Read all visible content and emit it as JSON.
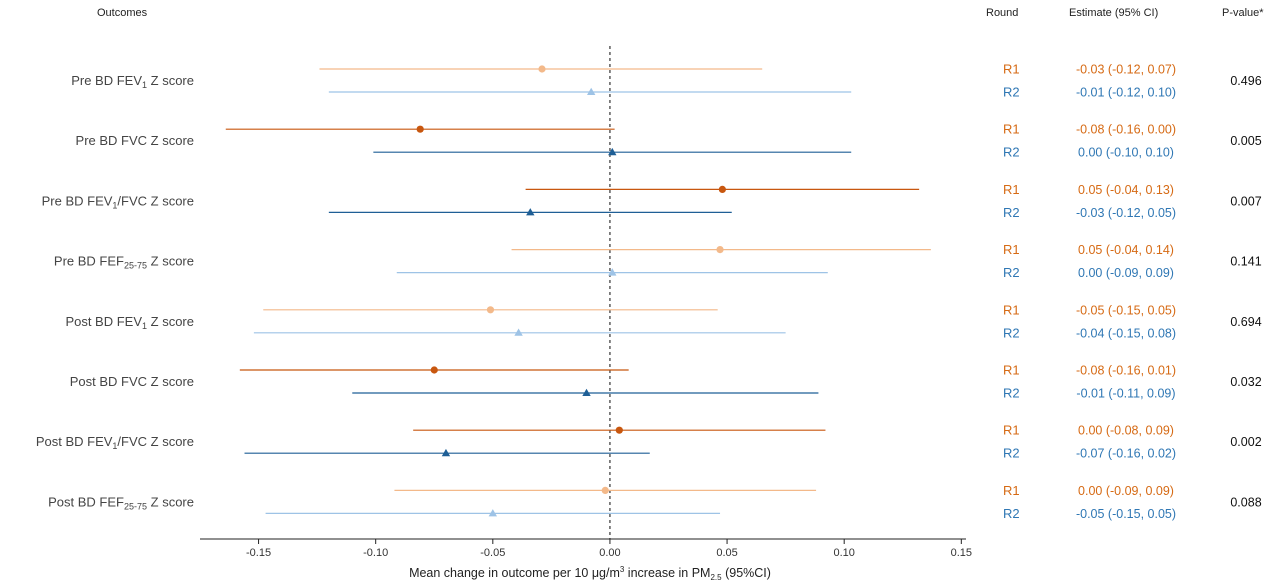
{
  "headers": {
    "outcomes": "Outcomes",
    "round": "Round",
    "estimate": "Estimate (95% CI)",
    "pvalue": "P-value*"
  },
  "colors": {
    "r1_strong": "#c8570f",
    "r1_light": "#f3b98a",
    "r2_strong": "#1f5f96",
    "r2_light": "#9ec3e6",
    "r1_text": "#d66a14",
    "r2_text": "#2f77b4",
    "zero_line": "#333333"
  },
  "chart_data": {
    "type": "forest",
    "xlabel": "Mean change in outcome per 10 μg/m³ increase in PM2.5 (95%CI)",
    "xlabel_parts": {
      "pre": "Mean change in outcome per 10 ",
      "mu": "μ",
      "g": "g/m",
      "sup": "3",
      "mid": " increase in  PM",
      "sub": "2.5",
      "post": " (95%CI)"
    },
    "xlim": [
      -0.175,
      0.152
    ],
    "xticks": [
      -0.15,
      -0.1,
      -0.05,
      0.0,
      0.05,
      0.1,
      0.15
    ],
    "xtick_labels": [
      "-0.15",
      "-0.10",
      "-0.05",
      "0.00",
      "0.05",
      "0.10",
      "0.15"
    ],
    "reference_line": 0,
    "series": [
      {
        "name": "R1",
        "marker": "circle"
      },
      {
        "name": "R2",
        "marker": "triangle"
      }
    ],
    "outcomes": [
      {
        "label": {
          "pre": "Pre BD FEV",
          "sub": "1",
          "post": " Z score"
        },
        "p_value": "0.496",
        "significant": false,
        "rows": [
          {
            "round": "R1",
            "est": -0.029,
            "lo": -0.124,
            "hi": 0.065,
            "text": "-0.03 (-0.12, 0.07)"
          },
          {
            "round": "R2",
            "est": -0.008,
            "lo": -0.12,
            "hi": 0.103,
            "text": "-0.01 (-0.12, 0.10)"
          }
        ]
      },
      {
        "label": {
          "pre": "Pre BD FVC Z score",
          "sub": "",
          "post": ""
        },
        "p_value": "0.005",
        "significant": true,
        "rows": [
          {
            "round": "R1",
            "est": -0.081,
            "lo": -0.164,
            "hi": 0.002,
            "text": "-0.08 (-0.16, 0.00)"
          },
          {
            "round": "R2",
            "est": 0.001,
            "lo": -0.101,
            "hi": 0.103,
            "text": "0.00 (-0.10, 0.10)"
          }
        ]
      },
      {
        "label": {
          "pre": "Pre BD FEV",
          "sub": "1",
          "post": "/FVC Z score"
        },
        "p_value": "0.007",
        "significant": true,
        "rows": [
          {
            "round": "R1",
            "est": 0.048,
            "lo": -0.036,
            "hi": 0.132,
            "text": "0.05 (-0.04, 0.13)"
          },
          {
            "round": "R2",
            "est": -0.034,
            "lo": -0.12,
            "hi": 0.052,
            "text": "-0.03 (-0.12, 0.05)"
          }
        ]
      },
      {
        "label": {
          "pre": "Pre BD FEF",
          "sub": "25-75",
          "post": " Z score"
        },
        "p_value": "0.141",
        "significant": false,
        "rows": [
          {
            "round": "R1",
            "est": 0.047,
            "lo": -0.042,
            "hi": 0.137,
            "text": "0.05 (-0.04, 0.14)"
          },
          {
            "round": "R2",
            "est": 0.001,
            "lo": -0.091,
            "hi": 0.093,
            "text": "0.00 (-0.09, 0.09)"
          }
        ]
      },
      {
        "label": {
          "pre": "Post BD FEV",
          "sub": "1",
          "post": " Z score"
        },
        "p_value": "0.694",
        "significant": false,
        "rows": [
          {
            "round": "R1",
            "est": -0.051,
            "lo": -0.148,
            "hi": 0.046,
            "text": "-0.05 (-0.15, 0.05)"
          },
          {
            "round": "R2",
            "est": -0.039,
            "lo": -0.152,
            "hi": 0.075,
            "text": "-0.04 (-0.15, 0.08)"
          }
        ]
      },
      {
        "label": {
          "pre": "Post BD FVC Z score",
          "sub": "",
          "post": ""
        },
        "p_value": "0.032",
        "significant": true,
        "rows": [
          {
            "round": "R1",
            "est": -0.075,
            "lo": -0.158,
            "hi": 0.008,
            "text": "-0.08 (-0.16, 0.01)"
          },
          {
            "round": "R2",
            "est": -0.01,
            "lo": -0.11,
            "hi": 0.089,
            "text": "-0.01 (-0.11, 0.09)"
          }
        ]
      },
      {
        "label": {
          "pre": "Post BD FEV",
          "sub": "1",
          "post": "/FVC Z score"
        },
        "p_value": "0.002",
        "significant": true,
        "rows": [
          {
            "round": "R1",
            "est": 0.004,
            "lo": -0.084,
            "hi": 0.092,
            "text": "0.00 (-0.08, 0.09)"
          },
          {
            "round": "R2",
            "est": -0.07,
            "lo": -0.156,
            "hi": 0.017,
            "text": "-0.07 (-0.16, 0.02)"
          }
        ]
      },
      {
        "label": {
          "pre": "Post BD FEF",
          "sub": "25-75",
          "post": " Z score"
        },
        "p_value": "0.088",
        "significant": false,
        "rows": [
          {
            "round": "R1",
            "est": -0.002,
            "lo": -0.092,
            "hi": 0.088,
            "text": "0.00 (-0.09, 0.09)"
          },
          {
            "round": "R2",
            "est": -0.05,
            "lo": -0.147,
            "hi": 0.047,
            "text": "-0.05 (-0.15, 0.05)"
          }
        ]
      }
    ]
  }
}
